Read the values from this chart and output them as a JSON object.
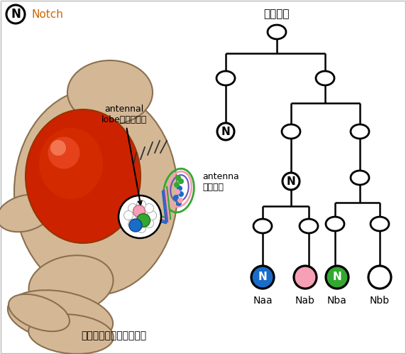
{
  "title": "前駆細胞",
  "notch_legend_text": "Notch",
  "fly_label": "ショウジョウバエの頭部",
  "antennal_lobe_label": "antennal\nlobe（触角葉）",
  "antenna_label": "antenna\n（触角）",
  "bottom_labels": [
    "Naa",
    "Nab",
    "Nba",
    "Nbb"
  ],
  "bottom_colors": [
    "#1a6cc9",
    "#f5a0b5",
    "#33a830",
    "#ffffff"
  ],
  "bottom_notch": [
    true,
    false,
    true,
    false
  ],
  "bg_color": "#ffffff",
  "body_tan": "#d4b896",
  "body_edge": "#8a7050",
  "eye_red_outer": "#cc2200",
  "eye_red_inner": "#ff4422",
  "eye_highlight": "#ff9966"
}
